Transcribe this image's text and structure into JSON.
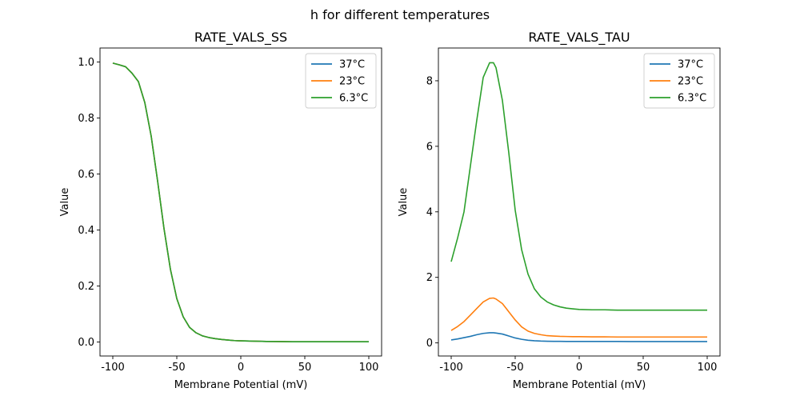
{
  "suptitle": "h for different temperatures",
  "chart_data": [
    {
      "type": "line",
      "title": "RATE_VALS_SS",
      "xlabel": "Membrane Potential (mV)",
      "ylabel": "Value",
      "xlim": [
        -110,
        110
      ],
      "ylim": [
        -0.05,
        1.05
      ],
      "xticks": [
        -100,
        -50,
        0,
        50,
        100
      ],
      "yticks": [
        0.0,
        0.2,
        0.4,
        0.6,
        0.8,
        1.0
      ],
      "ytick_labels": [
        "0.0",
        "0.2",
        "0.4",
        "0.6",
        "0.8",
        "1.0"
      ],
      "legend": "top-right",
      "x": [
        -100,
        -95,
        -90,
        -85,
        -80,
        -75,
        -70,
        -65,
        -60,
        -55,
        -50,
        -45,
        -40,
        -35,
        -30,
        -25,
        -20,
        -15,
        -10,
        -5,
        0,
        10,
        20,
        30,
        40,
        50,
        60,
        70,
        80,
        90,
        100
      ],
      "series": [
        {
          "name": "37°C",
          "color": "#1f77b4",
          "values": [
            0.996,
            0.99,
            0.983,
            0.96,
            0.93,
            0.855,
            0.735,
            0.575,
            0.405,
            0.26,
            0.155,
            0.09,
            0.052,
            0.033,
            0.022,
            0.016,
            0.012,
            0.009,
            0.007,
            0.005,
            0.004,
            0.003,
            0.002,
            0.0015,
            0.001,
            0.001,
            0.001,
            0.001,
            0.001,
            0.001,
            0.001
          ]
        },
        {
          "name": "23°C",
          "color": "#ff7f0e",
          "values": [
            0.996,
            0.99,
            0.983,
            0.96,
            0.93,
            0.855,
            0.735,
            0.575,
            0.405,
            0.26,
            0.155,
            0.09,
            0.052,
            0.033,
            0.022,
            0.016,
            0.012,
            0.009,
            0.007,
            0.005,
            0.004,
            0.003,
            0.002,
            0.0015,
            0.001,
            0.001,
            0.001,
            0.001,
            0.001,
            0.001,
            0.001
          ]
        },
        {
          "name": "6.3°C",
          "color": "#2ca02c",
          "values": [
            0.996,
            0.99,
            0.983,
            0.96,
            0.93,
            0.855,
            0.735,
            0.575,
            0.405,
            0.26,
            0.155,
            0.09,
            0.052,
            0.033,
            0.022,
            0.016,
            0.012,
            0.009,
            0.007,
            0.005,
            0.004,
            0.003,
            0.002,
            0.0015,
            0.001,
            0.001,
            0.001,
            0.001,
            0.001,
            0.001,
            0.001
          ]
        }
      ]
    },
    {
      "type": "line",
      "title": "RATE_VALS_TAU",
      "xlabel": "Membrane Potential (mV)",
      "ylabel": "Value",
      "xlim": [
        -110,
        110
      ],
      "ylim": [
        -0.4,
        9.0
      ],
      "xticks": [
        -100,
        -50,
        0,
        50,
        100
      ],
      "yticks": [
        0,
        2,
        4,
        6,
        8
      ],
      "ytick_labels": [
        "0",
        "2",
        "4",
        "6",
        "8"
      ],
      "legend": "top-right",
      "x": [
        -100,
        -95,
        -90,
        -85,
        -80,
        -75,
        -70,
        -67,
        -65,
        -60,
        -55,
        -50,
        -45,
        -40,
        -35,
        -30,
        -25,
        -20,
        -15,
        -10,
        -5,
        0,
        10,
        20,
        30,
        40,
        50,
        60,
        70,
        80,
        90,
        100
      ],
      "series": [
        {
          "name": "37°C",
          "color": "#1f77b4",
          "values": [
            0.09,
            0.12,
            0.16,
            0.2,
            0.25,
            0.29,
            0.31,
            0.31,
            0.3,
            0.27,
            0.21,
            0.15,
            0.11,
            0.08,
            0.065,
            0.055,
            0.05,
            0.047,
            0.046,
            0.045,
            0.044,
            0.044,
            0.043,
            0.043,
            0.043,
            0.042,
            0.042,
            0.042,
            0.042,
            0.042,
            0.042,
            0.042
          ]
        },
        {
          "name": "23°C",
          "color": "#ff7f0e",
          "values": [
            0.38,
            0.5,
            0.65,
            0.85,
            1.05,
            1.25,
            1.36,
            1.37,
            1.34,
            1.2,
            0.95,
            0.7,
            0.49,
            0.36,
            0.29,
            0.25,
            0.22,
            0.21,
            0.2,
            0.195,
            0.19,
            0.19,
            0.185,
            0.185,
            0.18,
            0.18,
            0.18,
            0.18,
            0.18,
            0.18,
            0.18,
            0.18
          ]
        },
        {
          "name": "6.3°C",
          "color": "#2ca02c",
          "values": [
            2.48,
            3.2,
            4.0,
            5.4,
            6.8,
            8.1,
            8.55,
            8.55,
            8.4,
            7.4,
            5.8,
            4.05,
            2.85,
            2.1,
            1.65,
            1.4,
            1.25,
            1.16,
            1.1,
            1.06,
            1.04,
            1.02,
            1.01,
            1.01,
            1.0,
            1.0,
            1.0,
            1.0,
            1.0,
            1.0,
            1.0,
            1.0
          ]
        }
      ]
    }
  ]
}
